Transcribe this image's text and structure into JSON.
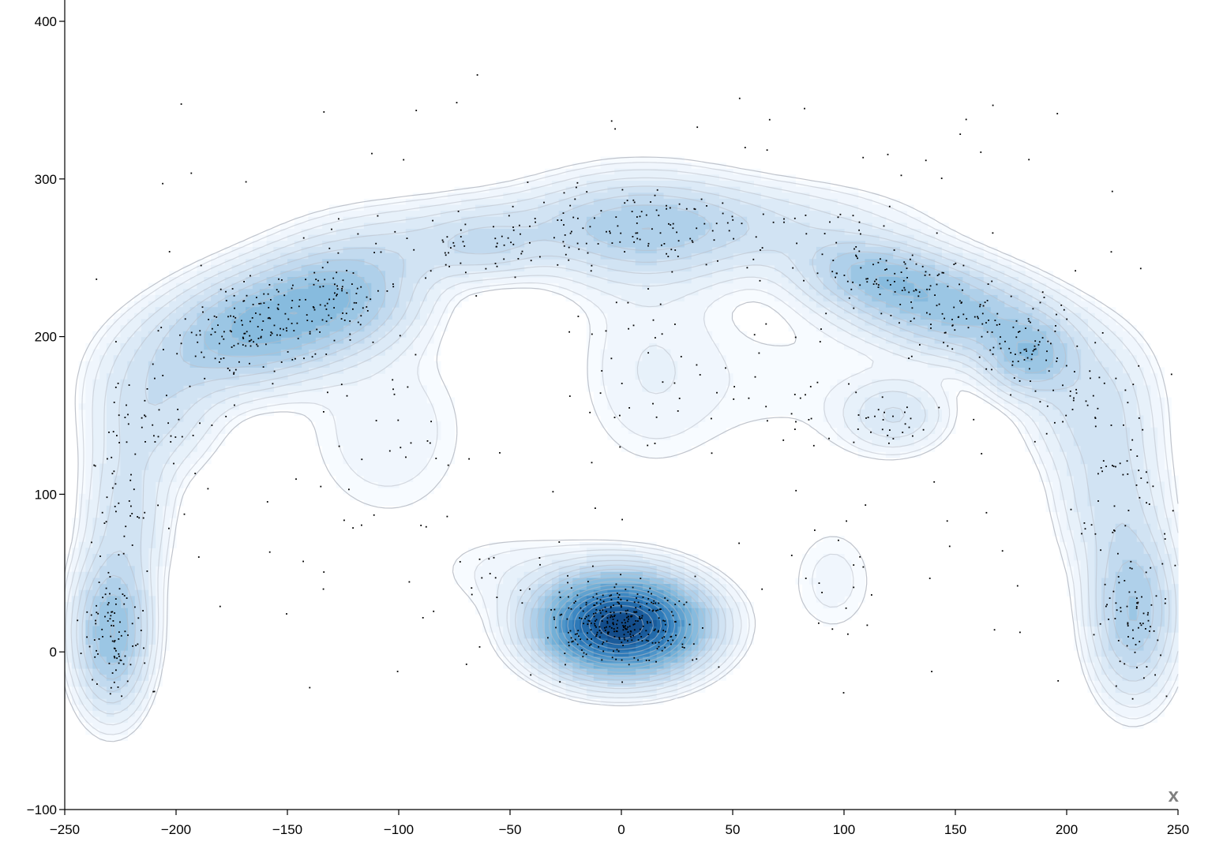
{
  "chart_data": {
    "type": "density-contour-scatter",
    "title": "",
    "xlabel": "x",
    "ylabel": "",
    "xlim": [
      -250,
      250
    ],
    "ylim": [
      -100,
      410
    ],
    "x_ticks": [
      -250,
      -200,
      -150,
      -100,
      -50,
      0,
      50,
      100,
      150,
      200,
      250
    ],
    "y_ticks": [
      -100,
      0,
      100,
      200,
      300,
      400
    ],
    "x_tick_labels": [
      "−250",
      "−200",
      "−150",
      "−100",
      "−50",
      "0",
      "50",
      "100",
      "150",
      "200",
      "250"
    ],
    "y_tick_labels": [
      "−100",
      "0",
      "100",
      "200",
      "300",
      "400"
    ],
    "grid": false,
    "colors": {
      "fill_low": "#f7fbff",
      "fill_high": "#08306b",
      "contour_stroke": "#b9bec6",
      "points": "#000000",
      "axis_label": "#808080"
    },
    "clusters": [
      {
        "center": [
          0,
          17
        ],
        "spread": [
          14,
          12
        ],
        "n": 300,
        "weight": 1.0
      },
      {
        "center": [
          -160,
          208
        ],
        "spread": [
          22,
          14
        ],
        "n": 170,
        "weight": 0.28,
        "angle_deg": 28
      },
      {
        "center": [
          -229,
          12
        ],
        "spread": [
          7,
          20
        ],
        "n": 90,
        "weight": 0.25
      },
      {
        "center": [
          230,
          25
        ],
        "spread": [
          8,
          22
        ],
        "n": 70,
        "weight": 0.2
      },
      {
        "center": [
          148,
          218
        ],
        "spread": [
          22,
          12
        ],
        "n": 110,
        "weight": 0.22,
        "angle_deg": -22
      },
      {
        "center": [
          183,
          187
        ],
        "spread": [
          8,
          10
        ],
        "n": 40,
        "weight": 0.18
      },
      {
        "center": [
          112,
          240
        ],
        "spread": [
          14,
          9
        ],
        "n": 45,
        "weight": 0.14,
        "angle_deg": -15
      },
      {
        "center": [
          8,
          268
        ],
        "spread": [
          20,
          15
        ],
        "n": 70,
        "weight": 0.12
      },
      {
        "center": [
          -60,
          258
        ],
        "spread": [
          12,
          9
        ],
        "n": 25,
        "weight": 0.08
      },
      {
        "center": [
          123,
          150
        ],
        "spread": [
          10,
          10
        ],
        "n": 25,
        "weight": 0.08
      },
      {
        "center": [
          -210,
          155
        ],
        "spread": [
          12,
          18
        ],
        "n": 40,
        "weight": 0.09
      },
      {
        "center": [
          -124,
          228
        ],
        "spread": [
          14,
          14
        ],
        "n": 45,
        "weight": 0.12
      },
      {
        "center": [
          210,
          160
        ],
        "spread": [
          12,
          18
        ],
        "n": 40,
        "weight": 0.09
      },
      {
        "center": [
          220,
          100
        ],
        "spread": [
          10,
          22
        ],
        "n": 35,
        "weight": 0.09
      },
      {
        "center": [
          -222,
          90
        ],
        "spread": [
          8,
          22
        ],
        "n": 35,
        "weight": 0.09
      },
      {
        "center": [
          -20,
          272
        ],
        "spread": [
          40,
          10
        ],
        "n": 35,
        "weight": 0.05
      },
      {
        "center": [
          60,
          270
        ],
        "spread": [
          30,
          12
        ],
        "n": 40,
        "weight": 0.06
      },
      {
        "center": [
          -95,
          255
        ],
        "spread": [
          15,
          10
        ],
        "n": 20,
        "weight": 0.05
      },
      {
        "center": [
          -105,
          140
        ],
        "spread": [
          18,
          28
        ],
        "n": 25,
        "weight": 0.035
      },
      {
        "center": [
          12,
          180
        ],
        "spread": [
          15,
          30
        ],
        "n": 30,
        "weight": 0.035
      },
      {
        "center": [
          95,
          45
        ],
        "spread": [
          10,
          18
        ],
        "n": 15,
        "weight": 0.03
      },
      {
        "center": [
          -45,
          50
        ],
        "spread": [
          18,
          12
        ],
        "n": 15,
        "weight": 0.03
      },
      {
        "center": [
          75,
          170
        ],
        "spread": [
          25,
          25
        ],
        "n": 25,
        "weight": 0.02
      }
    ],
    "background_points": 160
  }
}
